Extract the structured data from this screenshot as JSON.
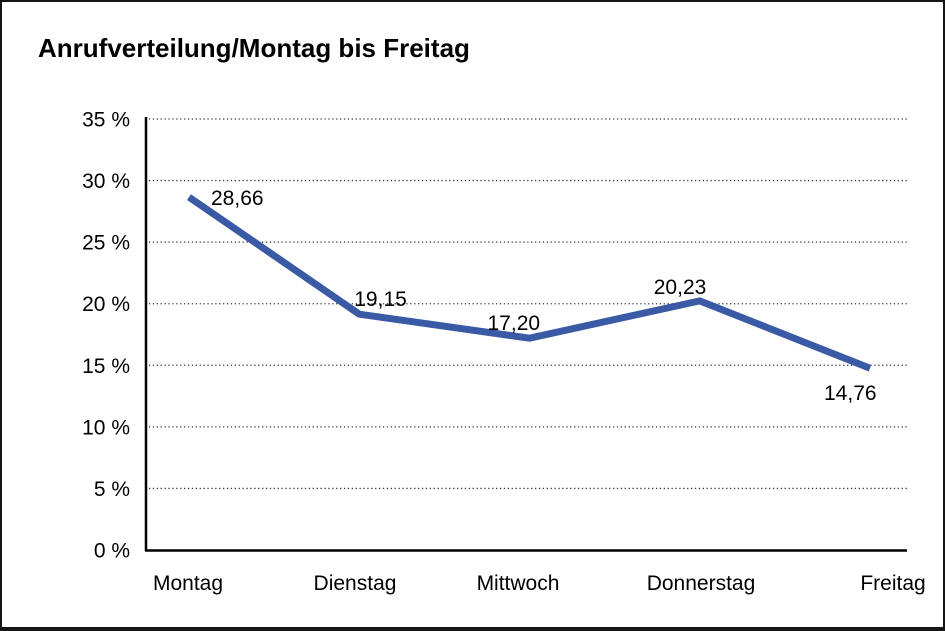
{
  "title": "Anrufverteilung/Montag bis Freitag",
  "chart_data": {
    "type": "line",
    "title": "Anrufverteilung/Montag bis Freitag",
    "categories": [
      "Montag",
      "Dienstag",
      "Mittwoch",
      "Donnerstag",
      "Freitag"
    ],
    "values": [
      28.66,
      19.15,
      17.2,
      20.23,
      14.76
    ],
    "value_labels": [
      "28,66",
      "19,15",
      "17,20",
      "20,23",
      "14,76"
    ],
    "xlabel": "",
    "ylabel": "",
    "ylim": [
      0,
      35
    ],
    "y_step": 5,
    "y_tick_labels": [
      "0 %",
      "5 %",
      "10 %",
      "15 %",
      "20 %",
      "25 %",
      "30 %",
      "35 %"
    ],
    "y_tick_suffix": " %",
    "grid": "horizontal-dotted",
    "legend_position": "none",
    "line_color": "#3A5AA5",
    "grid_color": "#3c3c3c",
    "axis_color": "#000000",
    "text_color": "#000000",
    "background_color": "#ffffff",
    "border_color": "#151515"
  }
}
